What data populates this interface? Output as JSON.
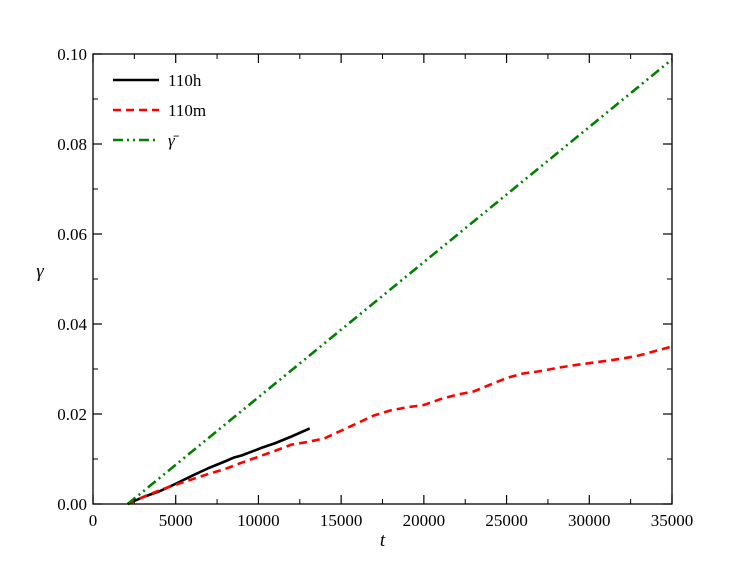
{
  "chart_data": {
    "type": "line",
    "title": "",
    "xlabel": "t",
    "ylabel": "γ",
    "xlim": [
      0,
      35000
    ],
    "ylim": [
      0,
      0.1
    ],
    "grid": false,
    "legend_position": "top-left",
    "x_ticks": [
      0,
      5000,
      10000,
      15000,
      20000,
      25000,
      30000,
      35000
    ],
    "x_tick_labels": [
      "0",
      "5000",
      "10000",
      "15000",
      "20000",
      "25000",
      "30000",
      "35000"
    ],
    "y_ticks": [
      0,
      0.02,
      0.04,
      0.06,
      0.08,
      0.1
    ],
    "y_tick_labels": [
      "0.00",
      "0.02",
      "0.04",
      "0.06",
      "0.08",
      "0.10"
    ],
    "series": [
      {
        "name": "110h",
        "color": "#000000",
        "style": "solid",
        "x": [
          2100,
          3000,
          4000,
          5000,
          6000,
          7000,
          8000,
          8500,
          9000,
          10000,
          10200,
          11000,
          12000,
          13100
        ],
        "y": [
          0.0,
          0.0015,
          0.0028,
          0.0045,
          0.0063,
          0.008,
          0.0095,
          0.0103,
          0.0108,
          0.0122,
          0.0125,
          0.0135,
          0.015,
          0.0168
        ]
      },
      {
        "name": "110m",
        "color": "#ff0000",
        "style": "dashed",
        "x": [
          2100,
          3000,
          4000,
          5000,
          6000,
          7000,
          8000,
          9000,
          10000,
          11000,
          12000,
          13000,
          14000,
          15000,
          16000,
          17000,
          18000,
          19000,
          20000,
          21000,
          22000,
          23000,
          24000,
          25000,
          26000,
          27000,
          28000,
          29000,
          30000,
          31000,
          32000,
          33000,
          34000,
          35000
        ],
        "y": [
          0.0,
          0.0015,
          0.003,
          0.0043,
          0.0055,
          0.0067,
          0.0078,
          0.0092,
          0.0105,
          0.0118,
          0.0132,
          0.0138,
          0.0146,
          0.0163,
          0.018,
          0.0197,
          0.0208,
          0.0215,
          0.022,
          0.0233,
          0.0243,
          0.025,
          0.0265,
          0.028,
          0.029,
          0.0295,
          0.0302,
          0.0308,
          0.0313,
          0.0318,
          0.0323,
          0.033,
          0.034,
          0.035
        ]
      },
      {
        "name": "γ̄",
        "color": "#008000",
        "style": "dashdotdot",
        "x": [
          2100,
          35000
        ],
        "y": [
          0.0,
          0.0988
        ]
      }
    ]
  }
}
